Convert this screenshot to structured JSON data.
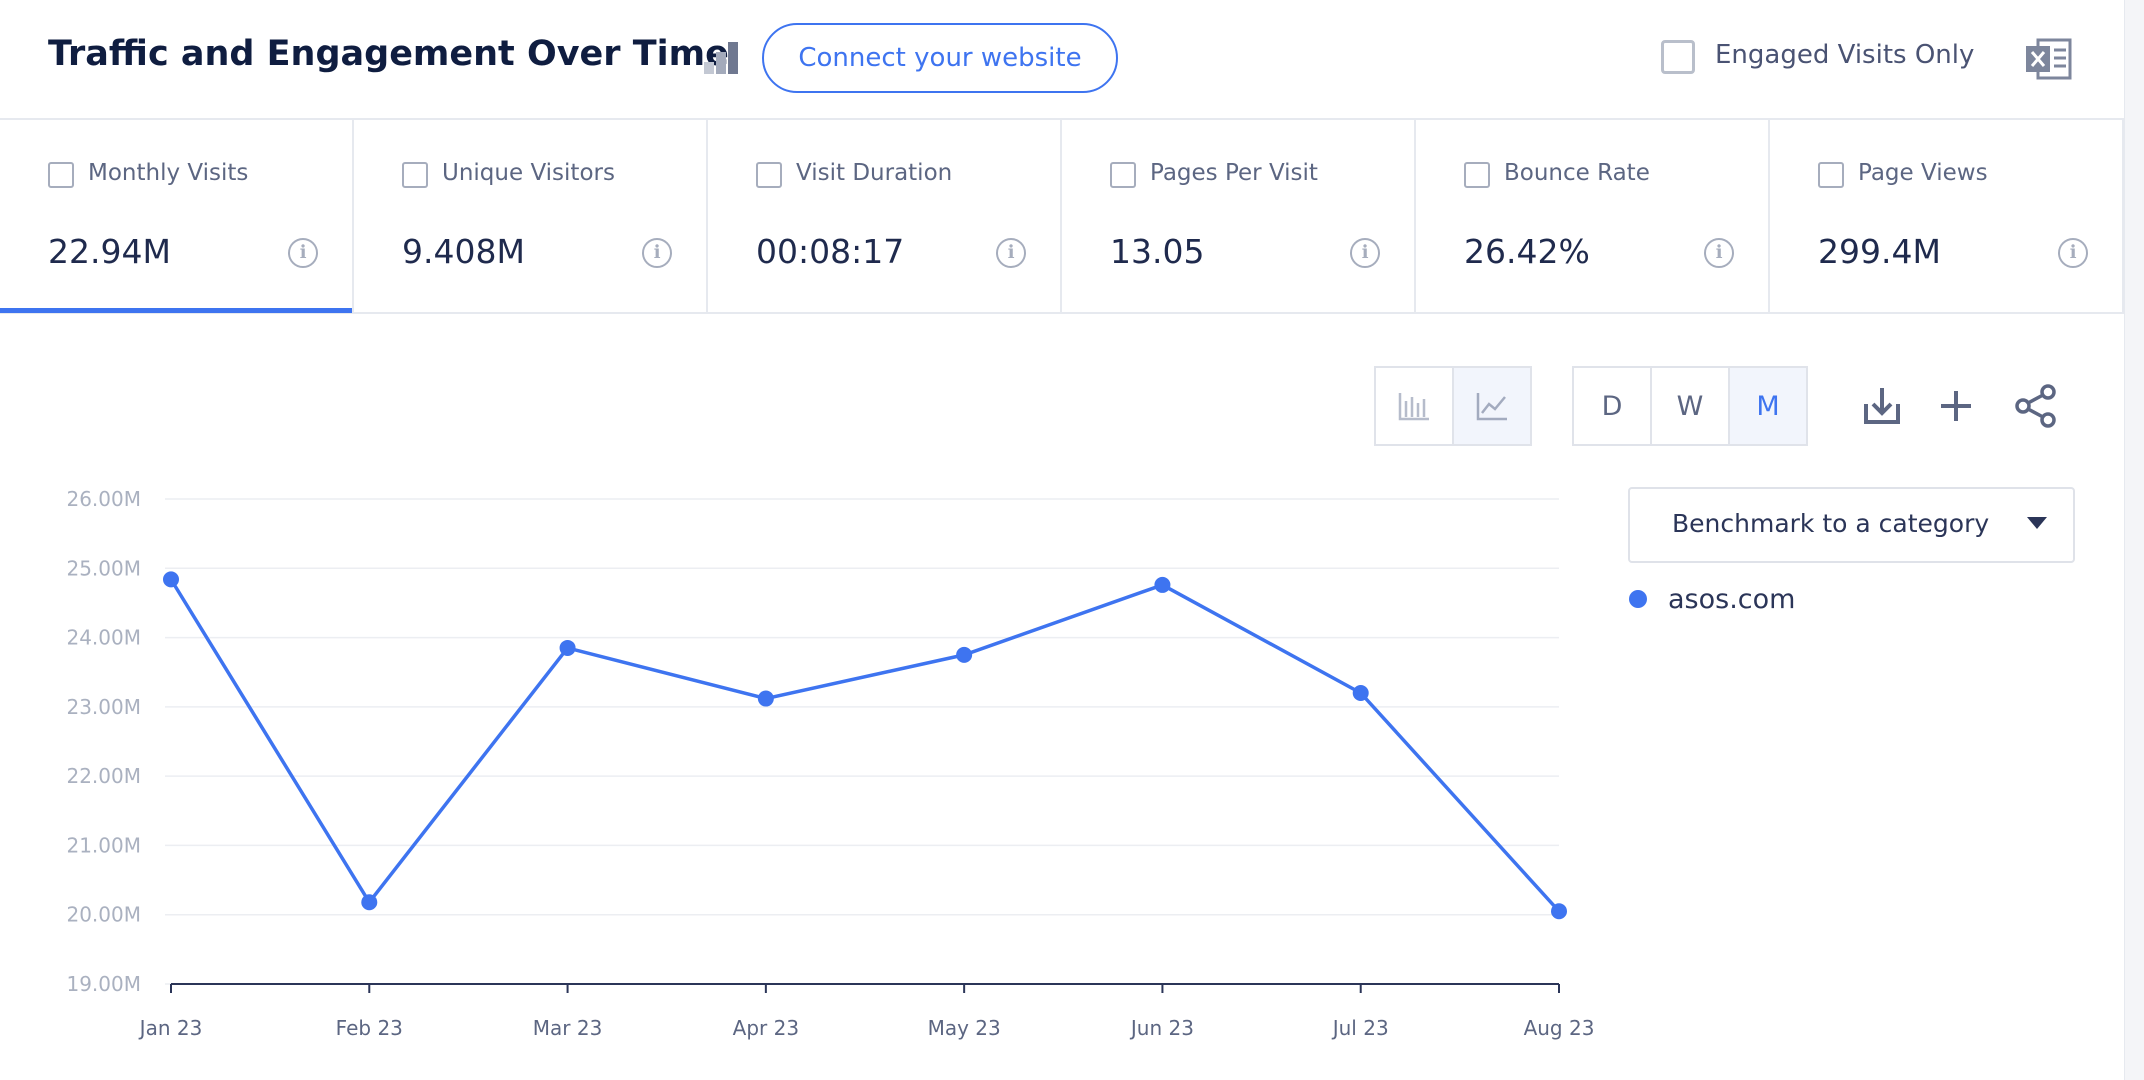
{
  "header": {
    "title": "Traffic and Engagement Over Time",
    "button": "Connect your website",
    "checkbox_label": "Engaged Visits Only"
  },
  "metrics": [
    {
      "label": "Monthly Visits",
      "value": "22.94M"
    },
    {
      "label": "Unique Visitors",
      "value": "9.408M"
    },
    {
      "label": "Visit Duration",
      "value": "00:08:17"
    },
    {
      "label": "Pages Per Visit",
      "value": "13.05"
    },
    {
      "label": "Bounce Rate",
      "value": "26.42%"
    },
    {
      "label": "Page Views",
      "value": "299.4M"
    }
  ],
  "controls": {
    "granularity": [
      "D",
      "W",
      "M"
    ],
    "benchmark": "Benchmark to a category"
  },
  "chart_data": {
    "type": "line",
    "categories": [
      "Jan 23",
      "Feb 23",
      "Mar 23",
      "Apr 23",
      "May 23",
      "Jun 23",
      "Jul 23",
      "Aug 23"
    ],
    "series": [
      {
        "name": "asos.com",
        "color": "#3e74f0",
        "values": [
          24.84,
          20.18,
          23.85,
          23.12,
          23.75,
          24.76,
          23.2,
          20.05
        ]
      }
    ],
    "ylim": [
      19,
      26
    ],
    "yticks": [
      {
        "value": 19,
        "label": "19.00M"
      },
      {
        "value": 20,
        "label": "20.00M"
      },
      {
        "value": 21,
        "label": "21.00M"
      },
      {
        "value": 22,
        "label": "22.00M"
      },
      {
        "value": 23,
        "label": "23.00M"
      },
      {
        "value": 24,
        "label": "24.00M"
      },
      {
        "value": 25,
        "label": "25.00M"
      },
      {
        "value": 26,
        "label": "26.00M"
      }
    ],
    "grid": true
  }
}
